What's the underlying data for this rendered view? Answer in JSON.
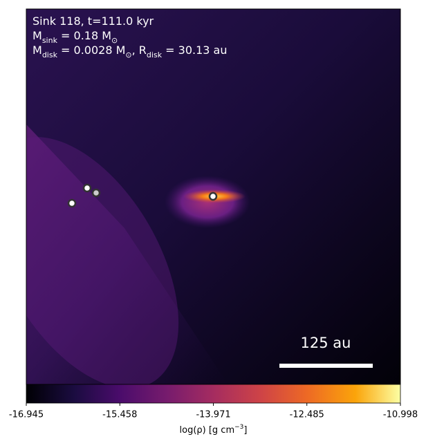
{
  "chart_data": {
    "type": "image",
    "annotations": [
      [
        {
          "text": "Sink 118, t=111.0 kyr"
        }
      ],
      [
        {
          "text": "M"
        },
        {
          "text": "sink",
          "sub": true
        },
        {
          "text": " = 0.18 M"
        },
        {
          "text": "⊙",
          "sub": true
        }
      ],
      [
        {
          "text": "M"
        },
        {
          "text": "disk",
          "sub": true
        },
        {
          "text": " = 0.0028 M"
        },
        {
          "text": "⊙",
          "sub": true
        },
        {
          "text": ", R"
        },
        {
          "text": "disk",
          "sub": true
        },
        {
          "text": " = 30.13 au"
        }
      ]
    ],
    "scale_bar_label": "125 au",
    "colorbar": {
      "colormap": "inferno",
      "lim": [
        -16.945,
        -10.998
      ],
      "ticks": [
        -16.945,
        -15.458,
        -13.971,
        -12.485,
        -10.998
      ],
      "label": [
        {
          "text": "log(ρ) [g cm"
        },
        {
          "text": "−3",
          "sup": true
        },
        {
          "text": "]"
        }
      ]
    }
  }
}
